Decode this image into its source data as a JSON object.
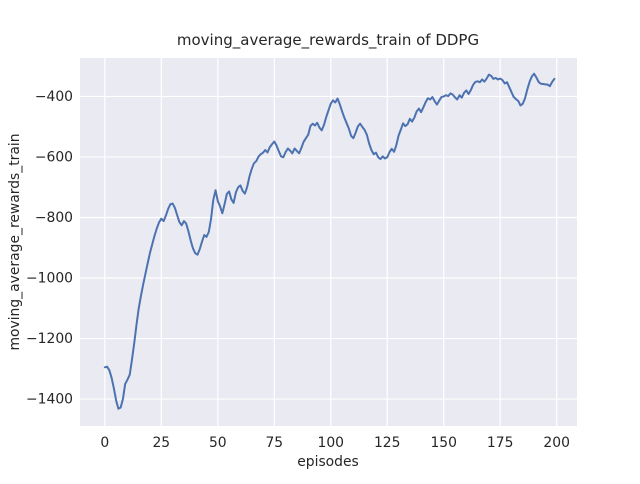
{
  "chart_data": {
    "type": "line",
    "title": "moving_average_rewards_train of DDPG",
    "xlabel": "episodes",
    "ylabel": "moving_average_rewards_train",
    "x_tick_values": [
      0,
      25,
      50,
      75,
      100,
      125,
      150,
      175,
      200
    ],
    "x_tick_labels": [
      "0",
      "25",
      "50",
      "75",
      "100",
      "125",
      "150",
      "175",
      "200"
    ],
    "y_tick_values": [
      -400,
      -600,
      -800,
      -1000,
      -1200,
      -1400
    ],
    "y_tick_labels": [
      "−400",
      "−600",
      "−800",
      "−1000",
      "−1200",
      "−1400"
    ],
    "xlim": [
      -11,
      209
    ],
    "ylim": [
      -1489,
      -273
    ],
    "grid": true,
    "legend_position": "none",
    "style": {
      "figure_background": "#ffffff",
      "axes_background": "#eaeaf2",
      "grid_color": "#ffffff",
      "text_color": "#262626",
      "line_color": "#4c72b0",
      "line_width": 2
    },
    "series": [
      {
        "name": "moving_average_rewards_train",
        "color": "#4c72b0",
        "x_start": 0,
        "x_step": 1,
        "values": [
          -1295,
          -1293,
          -1305,
          -1330,
          -1365,
          -1405,
          -1432,
          -1428,
          -1400,
          -1350,
          -1336,
          -1320,
          -1270,
          -1215,
          -1155,
          -1100,
          -1058,
          -1020,
          -985,
          -950,
          -916,
          -888,
          -860,
          -836,
          -816,
          -804,
          -812,
          -794,
          -772,
          -756,
          -754,
          -768,
          -792,
          -815,
          -826,
          -812,
          -820,
          -846,
          -876,
          -902,
          -918,
          -923,
          -905,
          -880,
          -858,
          -864,
          -848,
          -805,
          -742,
          -710,
          -746,
          -763,
          -786,
          -756,
          -722,
          -714,
          -740,
          -752,
          -717,
          -700,
          -694,
          -712,
          -721,
          -699,
          -665,
          -640,
          -621,
          -614,
          -599,
          -591,
          -586,
          -577,
          -585,
          -568,
          -558,
          -549,
          -562,
          -581,
          -598,
          -601,
          -584,
          -572,
          -579,
          -588,
          -572,
          -580,
          -588,
          -570,
          -550,
          -538,
          -527,
          -498,
          -490,
          -496,
          -487,
          -503,
          -512,
          -494,
          -468,
          -446,
          -424,
          -413,
          -420,
          -407,
          -426,
          -449,
          -470,
          -488,
          -506,
          -530,
          -538,
          -520,
          -499,
          -490,
          -501,
          -511,
          -527,
          -556,
          -577,
          -591,
          -586,
          -601,
          -607,
          -598,
          -605,
          -601,
          -584,
          -573,
          -583,
          -562,
          -530,
          -510,
          -489,
          -498,
          -492,
          -474,
          -483,
          -470,
          -450,
          -440,
          -452,
          -436,
          -419,
          -406,
          -410,
          -402,
          -416,
          -427,
          -414,
          -402,
          -400,
          -396,
          -399,
          -390,
          -394,
          -403,
          -410,
          -396,
          -404,
          -388,
          -380,
          -392,
          -379,
          -362,
          -352,
          -350,
          -353,
          -344,
          -351,
          -341,
          -328,
          -332,
          -342,
          -339,
          -344,
          -341,
          -346,
          -357,
          -353,
          -369,
          -386,
          -402,
          -409,
          -415,
          -430,
          -424,
          -406,
          -377,
          -352,
          -334,
          -325,
          -337,
          -352,
          -358,
          -359,
          -360,
          -361,
          -366,
          -352,
          -342
        ]
      }
    ]
  }
}
